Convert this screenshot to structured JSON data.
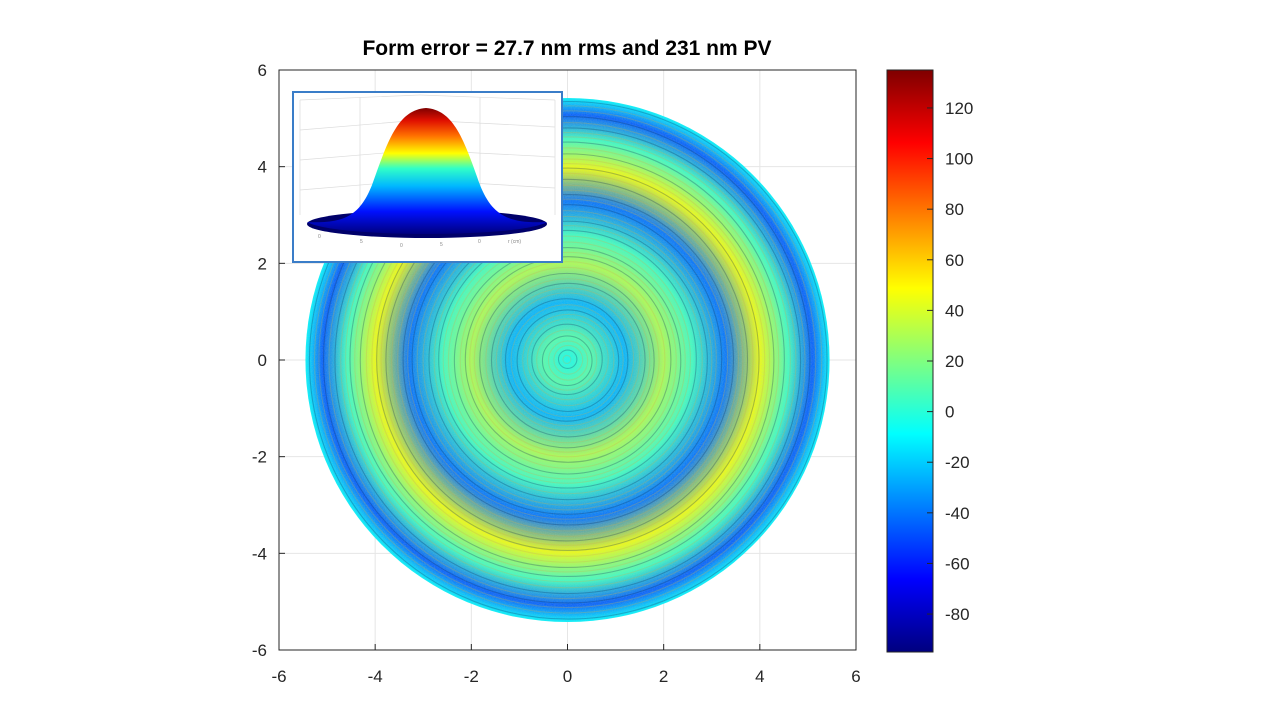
{
  "chart_data": {
    "type": "heatmap",
    "title": "Form error = 27.7 nm rms and 231 nm PV",
    "xlabel": "",
    "ylabel": "",
    "xlim": [
      -6,
      6
    ],
    "ylim": [
      -6,
      6
    ],
    "x_ticks": [
      -6,
      -4,
      -2,
      0,
      2,
      4,
      6
    ],
    "y_ticks": [
      -6,
      -4,
      -2,
      0,
      2,
      4,
      6
    ],
    "grid": true,
    "surface": {
      "shape": "circle",
      "center": [
        0,
        0
      ],
      "radius": 5.45,
      "pattern": "concentric rings"
    },
    "rings": [
      {
        "r": 0.0,
        "value": -5
      },
      {
        "r": 0.5,
        "value": 10
      },
      {
        "r": 1.2,
        "value": -25
      },
      {
        "r": 2.0,
        "value": 30
      },
      {
        "r": 2.6,
        "value": 5
      },
      {
        "r": 3.3,
        "value": -40
      },
      {
        "r": 4.0,
        "value": 45
      },
      {
        "r": 4.6,
        "value": 5
      },
      {
        "r": 5.1,
        "value": -45
      },
      {
        "r": 5.45,
        "value": -10
      }
    ],
    "colorbar": {
      "colormap": "jet",
      "range": [
        -95,
        135
      ],
      "ticks": [
        -80,
        -60,
        -40,
        -20,
        0,
        20,
        40,
        60,
        80,
        100,
        120
      ]
    },
    "inset": {
      "type": "surface3d",
      "shape": "gaussian bump",
      "description_visible": false
    }
  },
  "colors": {
    "axis": "#262626",
    "grid": "#e6e6e6",
    "inset_border": "#3a7dc8"
  }
}
